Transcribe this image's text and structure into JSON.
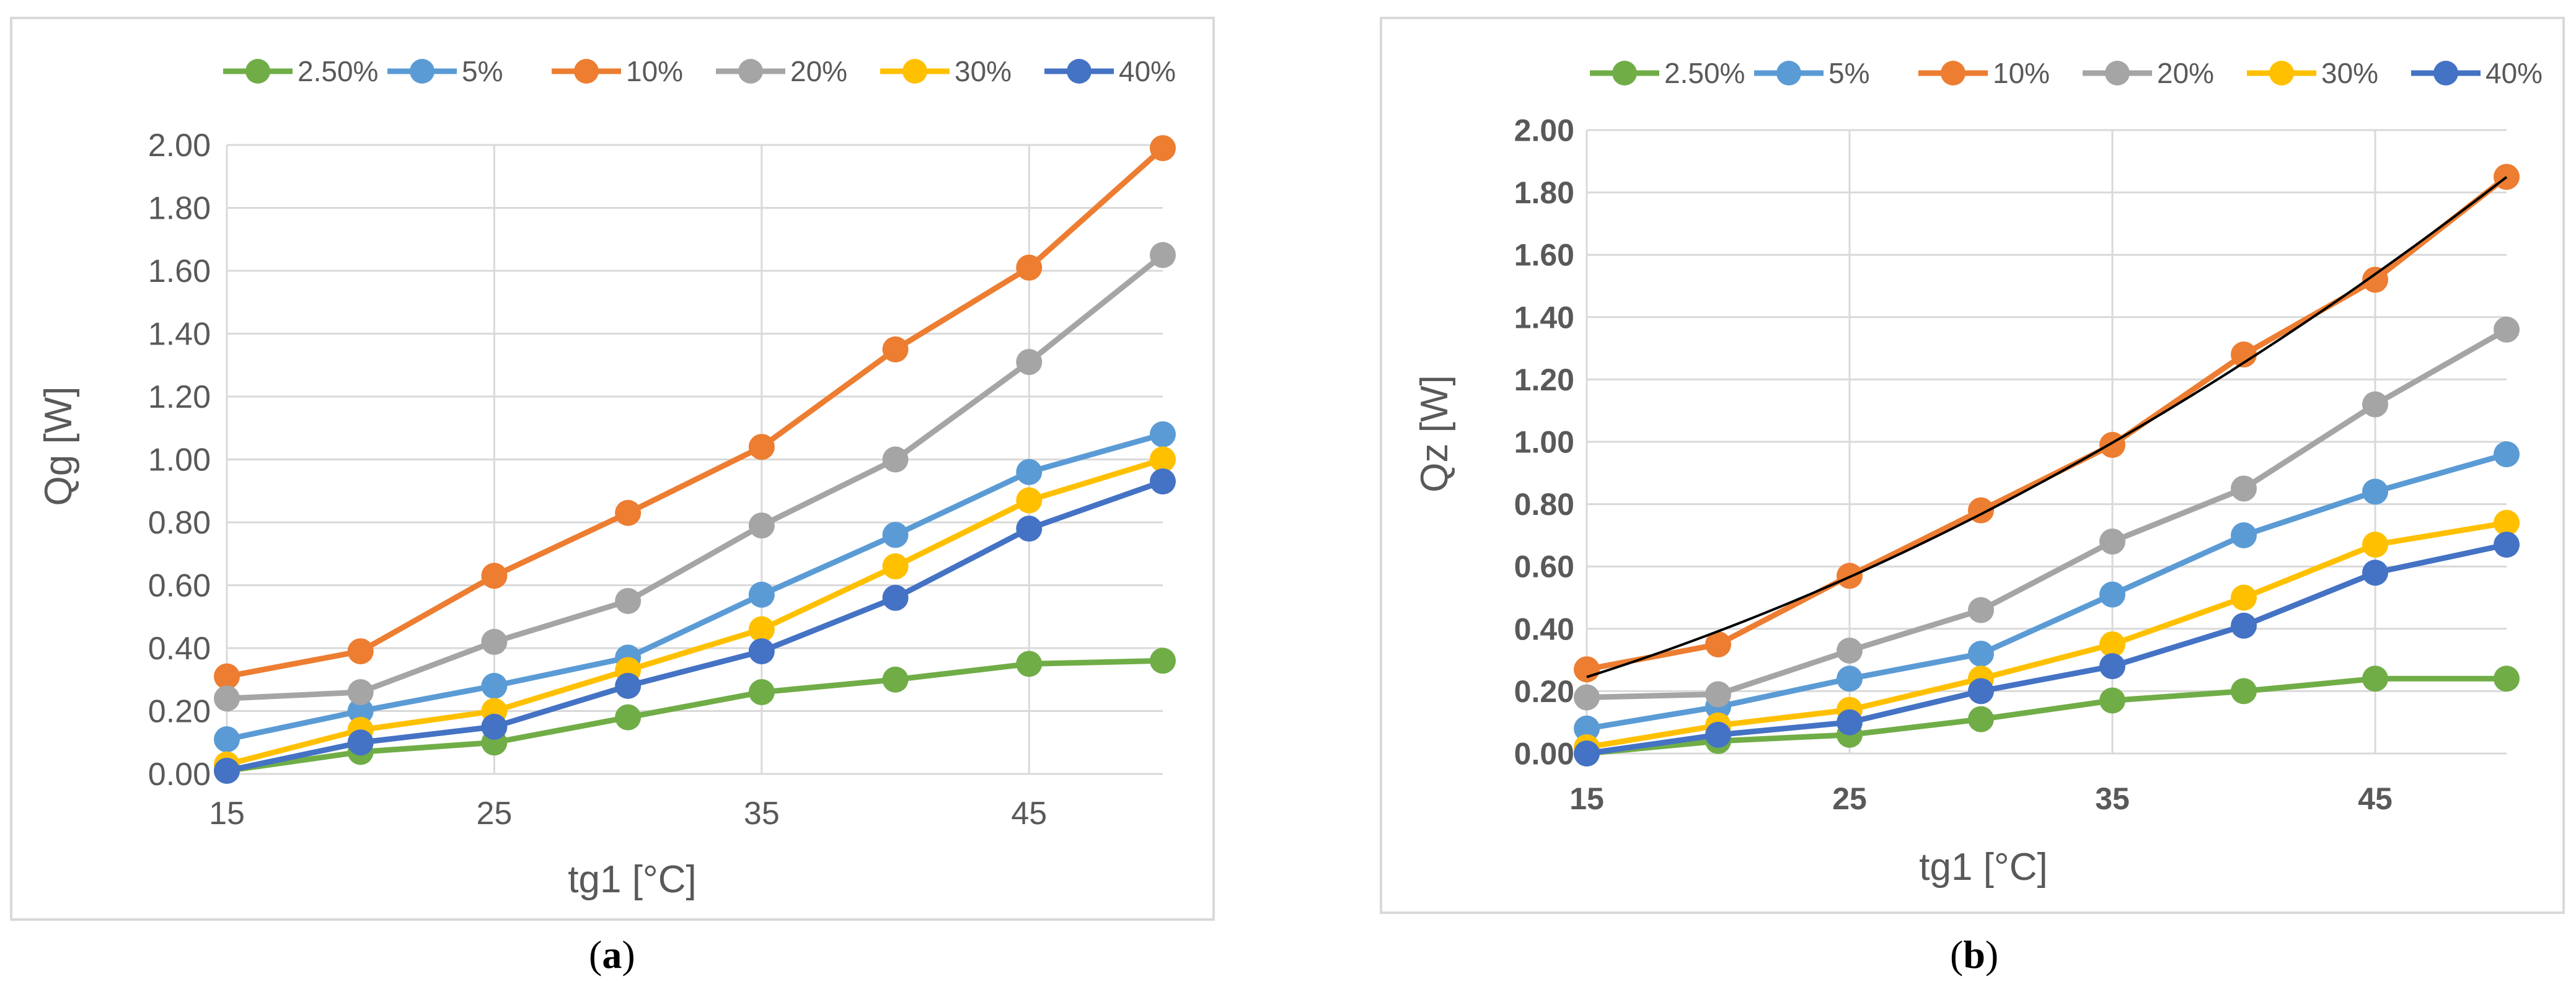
{
  "chart_data": [
    {
      "type": "line",
      "panel": "a",
      "ylabel": "Qg [W]",
      "xlabel": "tg1 [°C]",
      "x": [
        15,
        20,
        25,
        30,
        35,
        40,
        45,
        50
      ],
      "xticks": [
        15,
        25,
        35,
        45
      ],
      "xlim": [
        15,
        50
      ],
      "ylim": [
        0,
        2
      ],
      "yticks": [
        "0.00",
        "0.20",
        "0.40",
        "0.60",
        "0.80",
        "1.00",
        "1.20",
        "1.40",
        "1.60",
        "1.80",
        "2.00"
      ],
      "grid": true,
      "legend_position": "top",
      "tick_bold": false,
      "series": [
        {
          "name": "2.50%",
          "color": "#70ad47",
          "values": [
            0.01,
            0.07,
            0.1,
            0.18,
            0.26,
            0.3,
            0.35,
            0.36
          ]
        },
        {
          "name": "5%",
          "color": "#5b9bd5",
          "values": [
            0.11,
            0.2,
            0.28,
            0.37,
            0.57,
            0.76,
            0.96,
            1.08
          ]
        },
        {
          "name": "10%",
          "color": "#ed7d31",
          "values": [
            0.31,
            0.39,
            0.63,
            0.83,
            1.04,
            1.35,
            1.61,
            1.99
          ]
        },
        {
          "name": "20%",
          "color": "#a5a5a5",
          "values": [
            0.24,
            0.26,
            0.42,
            0.55,
            0.79,
            1.0,
            1.31,
            1.65
          ]
        },
        {
          "name": "30%",
          "color": "#ffc000",
          "values": [
            0.03,
            0.14,
            0.2,
            0.33,
            0.46,
            0.66,
            0.87,
            1.0
          ]
        },
        {
          "name": "40%",
          "color": "#4472c4",
          "values": [
            0.01,
            0.1,
            0.15,
            0.28,
            0.39,
            0.56,
            0.78,
            0.93
          ]
        }
      ]
    },
    {
      "type": "line",
      "panel": "b",
      "ylabel": "Qz [W]",
      "xlabel": "tg1 [°C]",
      "x": [
        15,
        20,
        25,
        30,
        35,
        40,
        45,
        50
      ],
      "xticks": [
        15,
        25,
        35,
        45
      ],
      "xlim": [
        15,
        50
      ],
      "ylim": [
        0,
        2
      ],
      "yticks": [
        "0.00",
        "0.20",
        "0.40",
        "0.60",
        "0.80",
        "1.00",
        "1.20",
        "1.40",
        "1.60",
        "1.80",
        "2.00"
      ],
      "grid": true,
      "legend_position": "top",
      "tick_bold": true,
      "trendline": {
        "color": "#000000",
        "series": "10%"
      },
      "series": [
        {
          "name": "2.50%",
          "color": "#70ad47",
          "values": [
            0.0,
            0.04,
            0.06,
            0.11,
            0.17,
            0.2,
            0.24,
            0.24
          ]
        },
        {
          "name": "5%",
          "color": "#5b9bd5",
          "values": [
            0.08,
            0.15,
            0.24,
            0.32,
            0.51,
            0.7,
            0.84,
            0.96
          ]
        },
        {
          "name": "10%",
          "color": "#ed7d31",
          "values": [
            0.27,
            0.35,
            0.57,
            0.78,
            0.99,
            1.28,
            1.52,
            1.85
          ]
        },
        {
          "name": "20%",
          "color": "#a5a5a5",
          "values": [
            0.18,
            0.19,
            0.33,
            0.46,
            0.68,
            0.85,
            1.12,
            1.36
          ]
        },
        {
          "name": "30%",
          "color": "#ffc000",
          "values": [
            0.02,
            0.09,
            0.14,
            0.24,
            0.35,
            0.5,
            0.67,
            0.74
          ]
        },
        {
          "name": "40%",
          "color": "#4472c4",
          "values": [
            0.0,
            0.06,
            0.1,
            0.2,
            0.28,
            0.41,
            0.58,
            0.67
          ]
        }
      ]
    }
  ],
  "captions": [
    {
      "open": "(",
      "letter": "a",
      "close": ")"
    },
    {
      "open": "(",
      "letter": "b",
      "close": ")"
    }
  ]
}
